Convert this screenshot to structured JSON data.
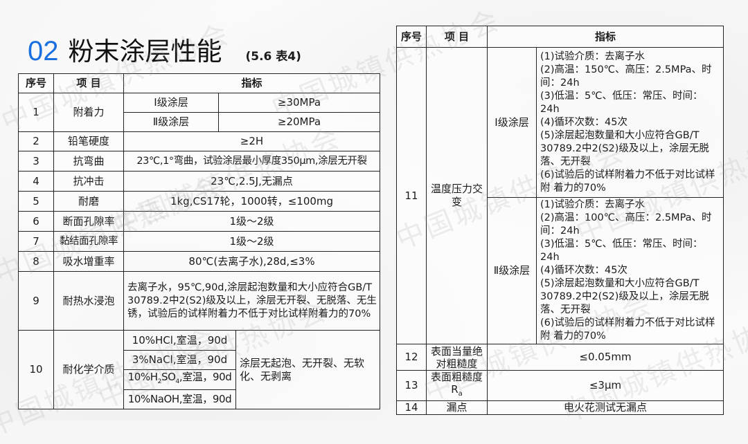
{
  "title": {
    "number": "02",
    "text": "粉末涂层性能",
    "ref": "(5.6 表4)"
  },
  "watermark": "中国城镇供热协会",
  "headers": {
    "no": "序号",
    "item": "项 目",
    "index": "指标"
  },
  "left_rows": {
    "r1": {
      "no": "1",
      "item": "附着力",
      "a_label": "I级涂层",
      "a_value": "≥30MPa",
      "b_label": "Ⅱ级涂层",
      "b_value": "≥20MPa"
    },
    "r2": {
      "no": "2",
      "item": "铅笔硬度",
      "value": "≥2H"
    },
    "r3": {
      "no": "3",
      "item": "抗弯曲",
      "value": "23℃,1°弯曲，试验涂层最小厚度350μm,涂层无开裂"
    },
    "r4": {
      "no": "4",
      "item": "抗冲击",
      "value": "23℃,2.5J,无漏点"
    },
    "r5": {
      "no": "5",
      "item": "耐磨",
      "value": "1kg,CS17轮，1000转，≤100mg"
    },
    "r6": {
      "no": "6",
      "item": "断面孔隙率",
      "value": "1级～2级"
    },
    "r7": {
      "no": "7",
      "item": "黏结面孔隙率",
      "value": "1级～2级"
    },
    "r8": {
      "no": "8",
      "item": "吸水增重率",
      "value": "80℃(去离子水),28d,≤3%"
    },
    "r9": {
      "no": "9",
      "item": "耐热水浸泡",
      "value": "去离子水，95℃,90d,涂层起泡数量和大小应符合GB/T 30789.2中2(S2)级及以上，涂层无开裂、无脱落、无生锈，试验后的试样附着力不低于对比试样附着力的70%"
    },
    "r10": {
      "no": "10",
      "item": "耐化学介质",
      "media": [
        "10%HCl,室温，90d",
        "3%NaCl,室温，90d",
        "10%H2SO4,室温，90d",
        "10%NaOH,室温，90d"
      ],
      "result": "涂层无起泡、无开裂、无软化、无剥离"
    }
  },
  "right_rows": {
    "r11": {
      "no": "11",
      "item": "温度压力交变",
      "g1": {
        "label": "I级涂层",
        "lines": [
          "(1)试验介质：去离子水",
          "(2)高温：150℃、高压：2.5MPa、时间：24h",
          "(3)低温：5℃、低压：常压、时间：24h",
          "(4)循环次数：45次",
          "(5)涂层起泡数量和大小应符合GB/T 30789.2中2(S2)级及以上，涂层无脱落、无开裂",
          "(6)试验后的试样附着力不低于对比试样附 着力的70%"
        ]
      },
      "g2": {
        "label": "Ⅱ级涂层",
        "lines": [
          "(1)试验介质：去离子水",
          "(2)高温：100℃、高压：2.5MPa、时间：24h",
          "(3)低温：5℃、低压：常压、时间：24h",
          "(4)循环次数：45次",
          "(5)涂层起泡数量和大小应符合GB/T 30789.2中2(S2)级及以上，涂层无脱落、无开裂",
          "(6)试验后的试样附着力不低于对比试样附 着力的70%"
        ]
      }
    },
    "r12": {
      "no": "12",
      "item": "表面当量绝对粗糙度",
      "value": "≤0.05mm"
    },
    "r13": {
      "no": "13",
      "item": "表面粗糙度",
      "item_sub": "a",
      "item_main": "R",
      "value": "≤3μm"
    },
    "r14": {
      "no": "14",
      "item": "漏点",
      "value": "电火花测试无漏点"
    }
  },
  "colors": {
    "accent": "#1a6fe0",
    "border": "#222222"
  }
}
